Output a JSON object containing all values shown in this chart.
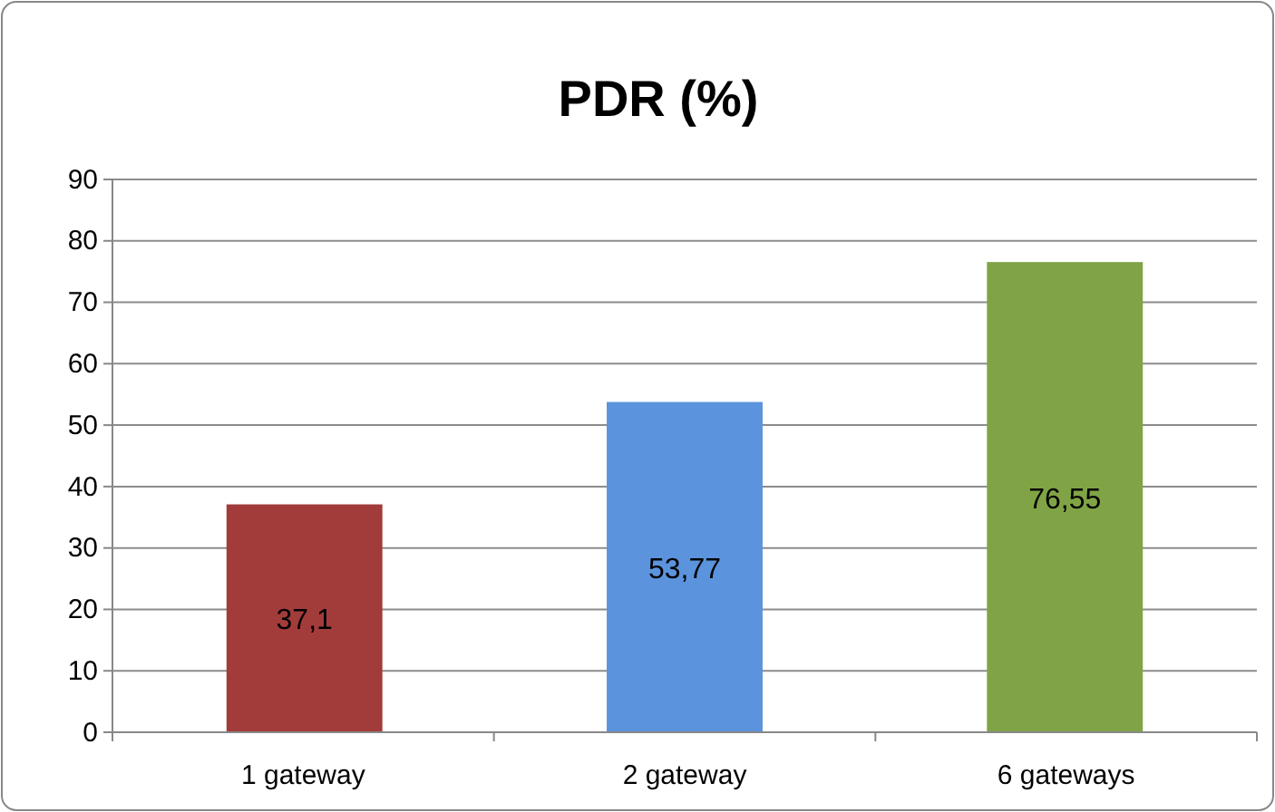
{
  "chart_data": {
    "type": "bar",
    "title": "PDR (%)",
    "categories": [
      "1 gateway",
      "2 gateway",
      "6 gateways"
    ],
    "values": [
      37.1,
      53.77,
      76.55
    ],
    "colors": [
      "#a23c3a",
      "#5b93dc",
      "#80a445"
    ],
    "value_labels": [
      "37,1",
      "53,77",
      "76,55"
    ],
    "ylim": [
      0,
      90
    ],
    "yticks": [
      0,
      10,
      20,
      30,
      40,
      50,
      60,
      70,
      80,
      90
    ],
    "grid": "y"
  }
}
